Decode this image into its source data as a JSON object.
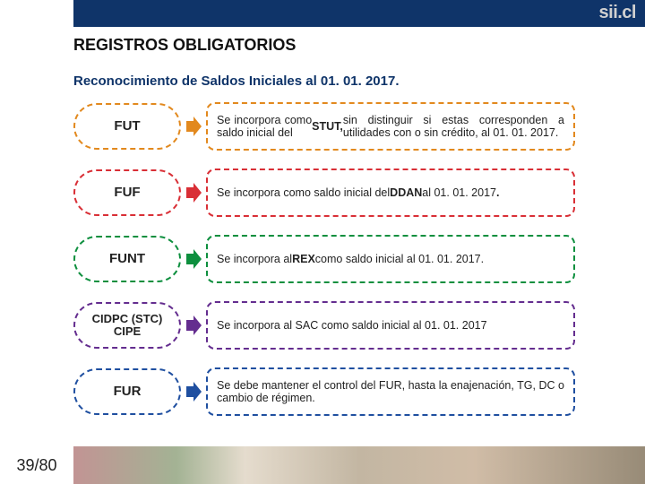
{
  "brand": "sii.cl",
  "title": "REGISTROS OBLIGATORIOS",
  "subtitle": "Reconocimiento de Saldos Iniciales al 01. 01. 2017.",
  "page": {
    "current": 39,
    "total": 80,
    "sep": " / "
  },
  "colors": {
    "topbar": "#0f3469",
    "subtitle": "#0f3469"
  },
  "rows": [
    {
      "label": "FUT",
      "color": "#e2891e",
      "desc_html": "Se incorpora como saldo inicial del <b>STUT,</b> sin distinguir si estas corresponden a utilidades con o sin crédito, al 01. 01. 2017."
    },
    {
      "label": "FUF",
      "color": "#d92f36",
      "desc_html": "Se incorpora como saldo inicial del <b>DDAN</b> al 01. 01. 2017<b>.</b>"
    },
    {
      "label": "FUNT",
      "color": "#0d8f3e",
      "desc_html": "Se incorpora al <b>REX</b> como saldo inicial al 01. 01. 2017."
    },
    {
      "label": "CIDPC (STC) CIPE",
      "small": true,
      "color": "#642d8f",
      "desc_html": "Se incorpora al SAC como saldo inicial al 01. 01. 2017"
    },
    {
      "label": "FUR",
      "color": "#1f4fa0",
      "desc_html": "Se debe mantener el control del FUR, hasta la enajenación, TG, DC o cambio de régimen."
    }
  ]
}
